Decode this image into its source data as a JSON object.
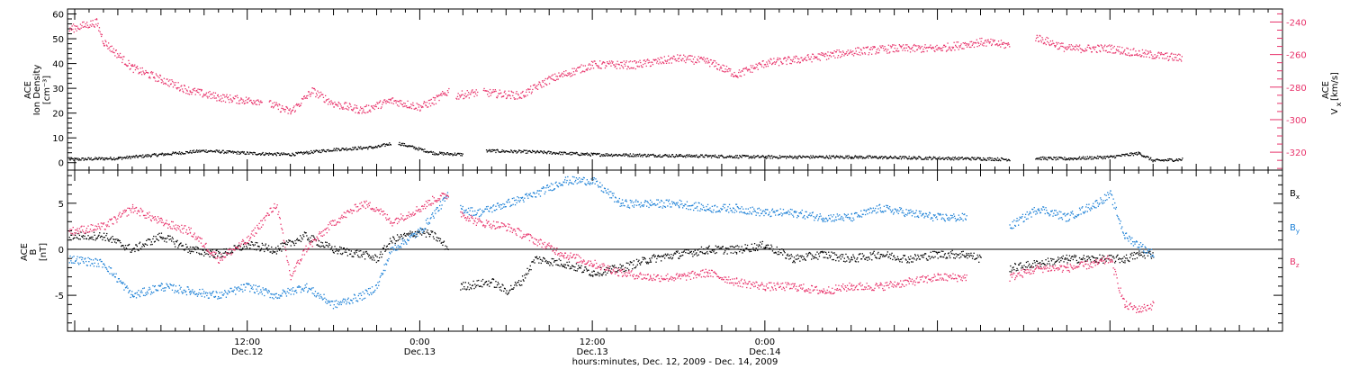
{
  "chart_data": [
    {
      "type": "scatter",
      "name": "density-velocity-panel",
      "ylabel_lines": [
        "ACE",
        "Ion Density",
        "[cm⁻³]"
      ],
      "ylim": [
        -3,
        62
      ],
      "yticks": [
        0,
        10,
        20,
        30,
        40,
        50,
        60
      ],
      "y2label_lines": [
        "ACE",
        "V",
        "x",
        "[km/s]"
      ],
      "y2lim": [
        -331,
        -232
      ],
      "y2ticks": [
        -320,
        -300,
        -280,
        -260,
        -240
      ],
      "colors": {
        "density": "#000000",
        "velocity": "#e8336b"
      },
      "series": [
        {
          "name": "Ion Density",
          "axis": "left",
          "color": "#000000",
          "segments": [
            [
              [
                -0.4,
                1.5
              ],
              [
                3,
                2
              ],
              [
                6,
                3.5
              ],
              [
                9,
                5
              ],
              [
                12,
                4
              ],
              [
                15,
                3.5
              ],
              [
                18,
                5.5
              ],
              [
                21,
                6.5
              ],
              [
                22,
                8
              ]
            ],
            [
              [
                22.5,
                8
              ],
              [
                25,
                4
              ],
              [
                27,
                3.5
              ]
            ],
            [
              [
                28.6,
                5
              ],
              [
                32,
                4.5
              ],
              [
                36,
                3.5
              ],
              [
                42,
                3
              ],
              [
                48,
                2.5
              ],
              [
                54,
                2.5
              ],
              [
                60,
                2
              ],
              [
                63,
                1.8
              ],
              [
                65,
                1.5
              ]
            ],
            [
              [
                66.8,
                2
              ],
              [
                69,
                1.8
              ],
              [
                72,
                2.5
              ],
              [
                74,
                4
              ],
              [
                75,
                1
              ],
              [
                77,
                1.5
              ]
            ]
          ]
        },
        {
          "name": "Vx",
          "axis": "right",
          "color": "#e8336b",
          "segments": [
            [
              [
                -0.4,
                -244
              ],
              [
                1.5,
                -240
              ],
              [
                2,
                -252
              ],
              [
                4,
                -268
              ],
              [
                6,
                -275
              ],
              [
                8,
                -282
              ],
              [
                10,
                -286
              ],
              [
                12,
                -288
              ],
              [
                13,
                -288
              ]
            ],
            [
              [
                13.5,
                -290
              ],
              [
                15,
                -295
              ],
              [
                16.5,
                -282
              ],
              [
                18,
                -290
              ],
              [
                20,
                -294
              ],
              [
                22,
                -288
              ],
              [
                24,
                -292
              ],
              [
                25,
                -288
              ],
              [
                26,
                -282
              ]
            ],
            [
              [
                26.5,
                -285
              ],
              [
                28,
                -283
              ]
            ],
            [
              [
                28.4,
                -283
              ],
              [
                31,
                -285
              ],
              [
                33,
                -275
              ],
              [
                36,
                -266
              ],
              [
                39,
                -266
              ],
              [
                42,
                -262
              ],
              [
                44,
                -264
              ],
              [
                46,
                -272
              ],
              [
                48,
                -265
              ],
              [
                51,
                -262
              ],
              [
                54,
                -258
              ],
              [
                57,
                -256
              ],
              [
                60,
                -256
              ],
              [
                63,
                -252
              ],
              [
                65,
                -254
              ]
            ],
            [
              [
                66.8,
                -249
              ],
              [
                69,
                -256
              ],
              [
                72,
                -256
              ],
              [
                74,
                -259
              ],
              [
                77,
                -262
              ]
            ]
          ]
        }
      ]
    },
    {
      "type": "scatter",
      "name": "magnetic-field-panel",
      "ylabel_lines": [
        "ACE",
        "B",
        "[nT]"
      ],
      "ylim": [
        -8.9,
        8.6
      ],
      "yticks": [
        -5,
        0,
        5
      ],
      "xlabel": "hours:minutes, Dec. 12, 2009 - Dec. 14, 2009",
      "xlim": [
        -0.5,
        84
      ],
      "xticks": [
        {
          "x": 12,
          "time": "12:00",
          "day": "Dec.12"
        },
        {
          "x": 24,
          "time": "0:00",
          "day": "Dec.13"
        },
        {
          "x": 36,
          "time": "12:00",
          "day": "Dec.13"
        },
        {
          "x": 48,
          "time": "0:00",
          "day": "Dec.14"
        }
      ],
      "legend": [
        {
          "name": "B",
          "sub": "x",
          "color": "#000000"
        },
        {
          "name": "B",
          "sub": "y",
          "color": "#1a7fd6"
        },
        {
          "name": "B",
          "sub": "z",
          "color": "#e8336b"
        }
      ],
      "series": [
        {
          "name": "Bx",
          "color": "#000000",
          "segments": [
            [
              [
                -0.4,
                1.5
              ],
              [
                2,
                1.5
              ],
              [
                4,
                0
              ],
              [
                6,
                1.5
              ],
              [
                8,
                0
              ],
              [
                10,
                -0.5
              ],
              [
                12,
                0.5
              ],
              [
                14,
                0
              ],
              [
                16,
                1.5
              ],
              [
                18,
                0
              ],
              [
                20,
                -0.5
              ],
              [
                21,
                -1
              ],
              [
                22,
                1
              ],
              [
                24,
                2
              ],
              [
                25,
                1.5
              ],
              [
                26,
                0
              ]
            ],
            [
              [
                26.8,
                -4
              ],
              [
                29,
                -3.5
              ],
              [
                30,
                -4.5
              ],
              [
                31,
                -3.5
              ],
              [
                32,
                -1
              ],
              [
                34,
                -1.5
              ],
              [
                36,
                -2.5
              ],
              [
                38,
                -2
              ],
              [
                40,
                -1
              ],
              [
                42,
                -0.5
              ],
              [
                44,
                0
              ],
              [
                46,
                0
              ],
              [
                48,
                0.5
              ],
              [
                50,
                -1
              ],
              [
                52,
                -0.5
              ],
              [
                54,
                -1
              ],
              [
                56,
                -0.5
              ],
              [
                58,
                -1
              ],
              [
                60,
                -0.5
              ],
              [
                62,
                -0.5
              ],
              [
                63,
                -1
              ]
            ],
            [
              [
                65,
                -2
              ],
              [
                67,
                -1.5
              ],
              [
                69,
                -1
              ],
              [
                71,
                -1
              ],
              [
                73,
                -1
              ],
              [
                74,
                -0.5
              ],
              [
                75,
                -0.5
              ]
            ]
          ]
        },
        {
          "name": "By",
          "color": "#1a7fd6",
          "segments": [
            [
              [
                -0.4,
                -1
              ],
              [
                2,
                -1.5
              ],
              [
                4,
                -5
              ],
              [
                6,
                -4
              ],
              [
                8,
                -4.5
              ],
              [
                10,
                -5
              ],
              [
                12,
                -4
              ],
              [
                14,
                -5
              ],
              [
                16,
                -4
              ],
              [
                18,
                -6
              ],
              [
                20,
                -5
              ],
              [
                21,
                -4
              ],
              [
                22,
                0
              ],
              [
                24,
                2
              ],
              [
                25,
                4
              ],
              [
                26,
                6
              ]
            ],
            [
              [
                26.8,
                4.5
              ],
              [
                28,
                4
              ],
              [
                30,
                5
              ],
              [
                32,
                6
              ],
              [
                34,
                7.5
              ],
              [
                36,
                7.5
              ],
              [
                38,
                5
              ],
              [
                40,
                5
              ],
              [
                42,
                5
              ],
              [
                44,
                4.5
              ],
              [
                46,
                4.5
              ],
              [
                48,
                4
              ],
              [
                50,
                4
              ],
              [
                52,
                3.5
              ],
              [
                54,
                3.5
              ],
              [
                56,
                4.5
              ],
              [
                58,
                4
              ],
              [
                60,
                3.5
              ],
              [
                62,
                3.5
              ]
            ],
            [
              [
                65,
                2.5
              ],
              [
                67,
                4.5
              ],
              [
                69,
                3.5
              ],
              [
                71,
                5
              ],
              [
                72,
                6
              ],
              [
                73,
                1.5
              ],
              [
                74,
                0.5
              ],
              [
                75,
                -0.5
              ]
            ]
          ]
        },
        {
          "name": "Bz",
          "color": "#e8336b",
          "segments": [
            [
              [
                -0.4,
                2
              ],
              [
                2,
                2.5
              ],
              [
                4,
                4.5
              ],
              [
                6,
                3
              ],
              [
                8,
                2
              ],
              [
                10,
                -1
              ],
              [
                12,
                1
              ],
              [
                14,
                5
              ],
              [
                15,
                -3
              ],
              [
                16,
                0
              ],
              [
                18,
                3
              ],
              [
                20,
                5
              ],
              [
                21,
                4.5
              ],
              [
                22,
                3
              ],
              [
                24,
                4.5
              ],
              [
                25,
                5.5
              ],
              [
                26,
                6
              ]
            ],
            [
              [
                26.8,
                4
              ],
              [
                28,
                3
              ],
              [
                30,
                2.5
              ],
              [
                32,
                1
              ],
              [
                34,
                -0.5
              ],
              [
                36,
                -1.5
              ],
              [
                38,
                -2.5
              ],
              [
                40,
                -3
              ],
              [
                42,
                -3
              ],
              [
                44,
                -2.5
              ],
              [
                46,
                -3.5
              ],
              [
                48,
                -4
              ],
              [
                50,
                -4
              ],
              [
                52,
                -4.5
              ],
              [
                54,
                -4
              ],
              [
                56,
                -4
              ],
              [
                58,
                -3.5
              ],
              [
                60,
                -3
              ],
              [
                62,
                -3
              ]
            ],
            [
              [
                65,
                -3
              ],
              [
                67,
                -2
              ],
              [
                69,
                -2
              ],
              [
                71,
                -1.5
              ],
              [
                72,
                -1
              ],
              [
                73,
                -6
              ],
              [
                74,
                -6.5
              ],
              [
                75,
                -6
              ]
            ]
          ]
        }
      ]
    }
  ]
}
